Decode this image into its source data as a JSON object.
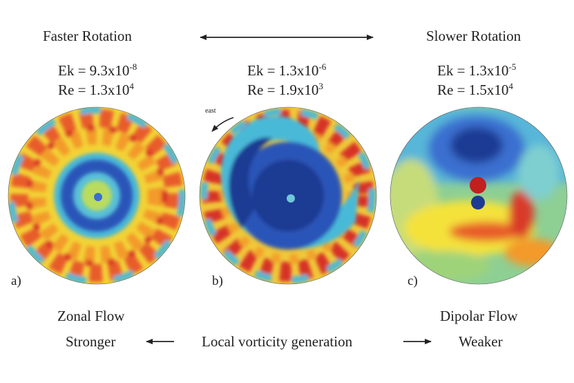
{
  "header": {
    "left_title": "Faster Rotation",
    "right_title": "Slower Rotation"
  },
  "panels": [
    {
      "label": "a)",
      "ek_prefix": "Ek = 9.3x10",
      "ek_exp": "-8",
      "re_prefix": "Re = 1.3x10",
      "re_exp": "4",
      "pattern": "zonal-rings"
    },
    {
      "label": "b)",
      "ek_prefix": "Ek = 1.3x10",
      "ek_exp": "-6",
      "re_prefix": "Re = 1.9x10",
      "re_exp": "3",
      "pattern": "spiral",
      "annotation": "east"
    },
    {
      "label": "c)",
      "ek_prefix": "Ek = 1.3x10",
      "ek_exp": "-5",
      "re_prefix": "Re = 1.5x10",
      "re_exp": "4",
      "pattern": "dipole"
    }
  ],
  "footer": {
    "left_flow": "Zonal Flow",
    "right_flow": "Dipolar Flow",
    "left_word": "Stronger",
    "center_phrase": "Local vorticity generation",
    "right_word": "Weaker"
  },
  "colors": {
    "deep_blue": "#1f3a93",
    "blue": "#3a6fd0",
    "cyan": "#49b9d8",
    "green": "#9fd37a",
    "yellow": "#f4e23a",
    "orange": "#f3a12c",
    "red": "#d93a2a",
    "dark_red": "#a01818"
  }
}
